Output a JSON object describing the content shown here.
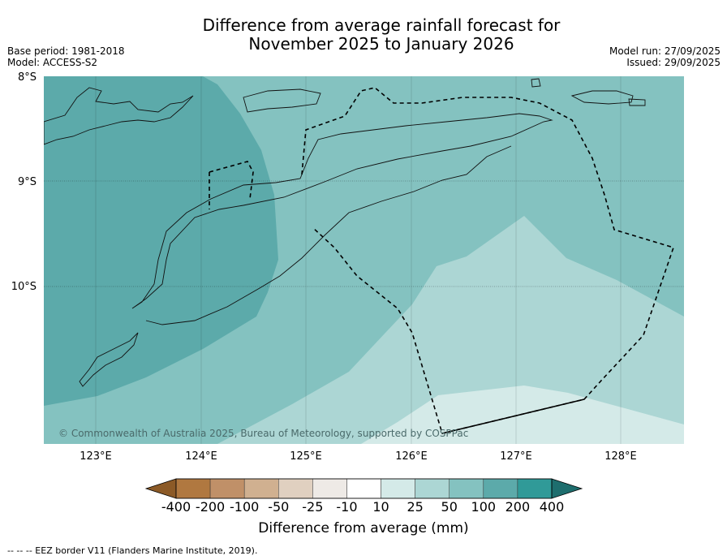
{
  "title_line1": "Difference from average rainfall forecast for",
  "title_line2": "November 2025 to January 2026",
  "base_period": "Base period: 1981-2018",
  "model": "Model: ACCESS-S2",
  "model_run": "Model run: 27/09/2025",
  "issued": "Issued: 29/09/2025",
  "copyright": "© Commonwealth of Australia 2025, Bureau of Meteorology, supported by COSPPac",
  "lat_labels": [
    "8°S",
    "9°S",
    "10°S"
  ],
  "lon_labels": [
    "123°E",
    "124°E",
    "125°E",
    "126°E",
    "127°E",
    "128°E"
  ],
  "colorbar": {
    "title": "Difference from average (mm)",
    "ticks": [
      "-400",
      "-200",
      "-100",
      "-50",
      "-25",
      "-10",
      "10",
      "25",
      "50",
      "100",
      "200",
      "400"
    ],
    "colors": [
      "#8c5a27",
      "#b07840",
      "#c09068",
      "#d0b090",
      "#e0d0c0",
      "#eeeae6",
      "#ffffff",
      "#d4eae8",
      "#acd6d4",
      "#84c2c0",
      "#5caaaa",
      "#309a98",
      "#1e6e6e"
    ]
  },
  "footnote": "-- -- -- EEZ border V11 (Flanders Marine Institute, 2019)."
}
